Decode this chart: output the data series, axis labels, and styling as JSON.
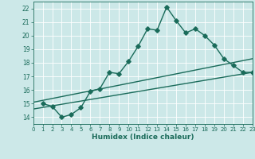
{
  "xlabel": "Humidex (Indice chaleur)",
  "bg_color": "#cce8e8",
  "grid_color": "#ffffff",
  "line_color": "#1a6b5a",
  "xlim": [
    0,
    23
  ],
  "ylim": [
    13.5,
    22.5
  ],
  "xticks": [
    0,
    1,
    2,
    3,
    4,
    5,
    6,
    7,
    8,
    9,
    10,
    11,
    12,
    13,
    14,
    15,
    16,
    17,
    18,
    19,
    20,
    21,
    22,
    23
  ],
  "yticks": [
    14,
    15,
    16,
    17,
    18,
    19,
    20,
    21,
    22
  ],
  "main_line": {
    "x": [
      1,
      2,
      3,
      4,
      5,
      6,
      7,
      8,
      9,
      10,
      11,
      12,
      13,
      14,
      15,
      16,
      17,
      18,
      19,
      20,
      21,
      22,
      23
    ],
    "y": [
      15.0,
      14.8,
      14.0,
      14.2,
      14.7,
      15.9,
      16.1,
      17.3,
      17.2,
      18.1,
      19.2,
      20.5,
      20.4,
      22.1,
      21.1,
      20.2,
      20.5,
      20.0,
      19.3,
      18.3,
      17.8,
      17.3,
      17.3
    ]
  },
  "lower_line": {
    "x": [
      0,
      23
    ],
    "y": [
      14.6,
      17.3
    ]
  },
  "upper_line": {
    "x": [
      0,
      23
    ],
    "y": [
      15.1,
      18.3
    ]
  },
  "marker": "D",
  "marker_size": 2.8,
  "line_width": 1.0,
  "xlabel_fontsize": 6.5,
  "xtick_fontsize": 5.0,
  "ytick_fontsize": 5.5
}
